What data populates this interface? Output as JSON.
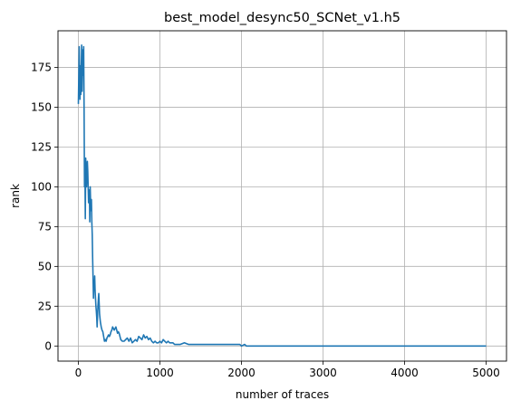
{
  "chart_data": {
    "type": "line",
    "title": "best_model_desync50_SCNet_v1.h5",
    "xlabel": "number of traces",
    "ylabel": "rank",
    "xlim": [
      -250,
      5250
    ],
    "ylim": [
      -9.5,
      198
    ],
    "xticks": [
      0,
      1000,
      2000,
      3000,
      4000,
      5000
    ],
    "yticks": [
      0,
      25,
      50,
      75,
      100,
      125,
      150,
      175
    ],
    "xtick_labels": [
      "0",
      "1000",
      "2000",
      "3000",
      "4000",
      "5000"
    ],
    "ytick_labels": [
      "0",
      "25",
      "50",
      "75",
      "100",
      "125",
      "150",
      "175"
    ],
    "grid": true,
    "line_color": "#1f77b4",
    "series": [
      {
        "x": [
          0,
          10,
          20,
          25,
          30,
          40,
          45,
          50,
          55,
          60,
          65,
          70,
          75,
          80,
          85,
          90,
          95,
          100,
          105,
          110,
          115,
          120,
          125,
          130,
          135,
          140,
          145,
          150,
          155,
          160,
          165,
          170,
          175,
          180,
          185,
          190,
          195,
          200,
          205,
          210,
          215,
          220,
          225,
          230,
          240,
          250,
          260,
          270,
          280,
          290,
          300,
          310,
          320,
          330,
          340,
          350,
          360,
          370,
          380,
          390,
          400,
          410,
          420,
          430,
          440,
          450,
          460,
          470,
          480,
          490,
          500,
          520,
          540,
          560,
          580,
          600,
          620,
          640,
          660,
          680,
          700,
          720,
          740,
          760,
          780,
          800,
          820,
          840,
          860,
          880,
          900,
          920,
          940,
          960,
          980,
          1000,
          1020,
          1040,
          1060,
          1080,
          1100,
          1120,
          1140,
          1160,
          1180,
          1200,
          1250,
          1300,
          1350,
          1400,
          1500,
          1600,
          1700,
          1800,
          1900,
          1980,
          2000,
          2040,
          2060,
          2100,
          2200,
          2500,
          3000,
          3500,
          4000,
          4500,
          5000
        ],
        "y": [
          152,
          188,
          155,
          176,
          158,
          189,
          160,
          175,
          186,
          170,
          188,
          150,
          100,
          115,
          80,
          118,
          105,
          100,
          112,
          116,
          110,
          100,
          90,
          95,
          98,
          78,
          100,
          90,
          85,
          92,
          78,
          70,
          55,
          43,
          30,
          40,
          35,
          44,
          35,
          30,
          25,
          22,
          18,
          12,
          25,
          33,
          20,
          15,
          12,
          10,
          9,
          6,
          3,
          4,
          3,
          5,
          6,
          7,
          6,
          7,
          9,
          10,
          12,
          11,
          10,
          11,
          12,
          10,
          8,
          9,
          8,
          4,
          3,
          3,
          4,
          5,
          3,
          5,
          2,
          3,
          4,
          3,
          6,
          5,
          4,
          7,
          5,
          6,
          4,
          5,
          3,
          2,
          3,
          2,
          2,
          3,
          2,
          4,
          3,
          2,
          3,
          2,
          2,
          2,
          1,
          1,
          1,
          2,
          1,
          1,
          1,
          1,
          1,
          1,
          1,
          1,
          0,
          1,
          0,
          0,
          0,
          0,
          0,
          0,
          0,
          0,
          0
        ]
      }
    ]
  }
}
